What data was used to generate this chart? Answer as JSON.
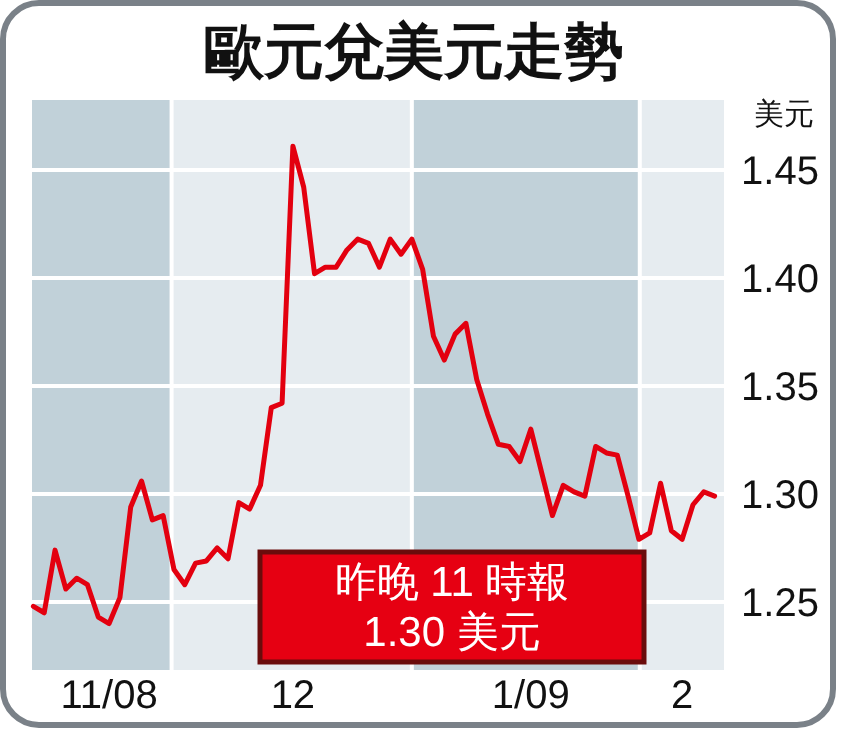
{
  "chart_data": {
    "type": "line",
    "title": "歐元兌美元走勢",
    "ylabel": "美元",
    "categories": [
      null,
      null,
      null,
      null,
      null,
      null,
      null,
      "11/08",
      null,
      null,
      null,
      null,
      null,
      null,
      null,
      null,
      null,
      null,
      null,
      null,
      null,
      null,
      null,
      null,
      "12",
      null,
      null,
      null,
      null,
      null,
      null,
      null,
      null,
      null,
      null,
      null,
      null,
      null,
      null,
      null,
      null,
      null,
      null,
      null,
      null,
      null,
      "1/09",
      null,
      null,
      null,
      null,
      null,
      null,
      null,
      null,
      null,
      null,
      null,
      null,
      null,
      "2",
      null,
      null,
      null
    ],
    "series": [
      {
        "color": "#e3000f",
        "values": [
          1.248,
          1.245,
          1.274,
          1.256,
          1.261,
          1.258,
          1.243,
          1.24,
          1.252,
          1.294,
          1.306,
          1.288,
          1.29,
          1.265,
          1.258,
          1.268,
          1.269,
          1.275,
          1.27,
          1.296,
          1.293,
          1.304,
          1.34,
          1.342,
          1.461,
          1.442,
          1.402,
          1.405,
          1.405,
          1.413,
          1.418,
          1.416,
          1.405,
          1.418,
          1.411,
          1.418,
          1.404,
          1.373,
          1.362,
          1.374,
          1.379,
          1.353,
          1.337,
          1.323,
          1.322,
          1.315,
          1.33,
          1.31,
          1.29,
          1.304,
          1.301,
          1.299,
          1.322,
          1.319,
          1.318,
          1.299,
          1.279,
          1.282,
          1.305,
          1.283,
          1.279,
          1.295,
          1.301,
          1.299
        ]
      }
    ],
    "ylim": [
      1.2185,
      1.4824
    ],
    "yticks": [
      {
        "value": 1.25,
        "label": "1.25"
      },
      {
        "value": 1.3,
        "label": "1.30"
      },
      {
        "value": 1.35,
        "label": "1.35"
      },
      {
        "value": 1.4,
        "label": "1.40"
      },
      {
        "value": 1.45,
        "label": "1.45"
      }
    ],
    "grid": true,
    "annotations": [
      "昨晚 11 時報\n1.30 美元"
    ]
  }
}
